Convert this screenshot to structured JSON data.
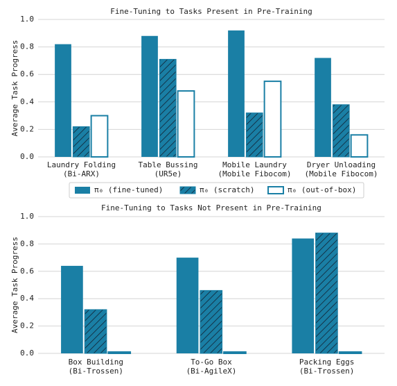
{
  "chart_data": [
    {
      "type": "bar",
      "title": "Fine-Tuning to Tasks Present in Pre-Training",
      "y_label": "Average Task Progress",
      "categories": [
        "Laundry Folding\n(Bi-ARX)",
        "Table Bussing\n(UR5e)",
        "Mobile Laundry\n(Mobile Fibocom)",
        "Dryer Unloading\n(Mobile Fibocom)"
      ],
      "series": [
        {
          "name": "π₀ (fine-tuned)",
          "color": "#1a7fa5",
          "pattern": "solid",
          "values": [
            0.82,
            0.88,
            0.92,
            0.72
          ]
        },
        {
          "name": "π₀ (scratch)",
          "color": "#1a7fa5",
          "pattern": "hatch",
          "values": [
            0.22,
            0.71,
            0.32,
            0.38
          ]
        },
        {
          "name": "π₀ (out-of-box)",
          "color": "#1a7fa5",
          "pattern": "outline",
          "values": [
            0.3,
            0.48,
            0.55,
            0.16
          ]
        }
      ],
      "ylim": [
        0,
        1
      ],
      "yticks": [
        {
          "value": 0,
          "label": "0.0"
        },
        0.2,
        0.4,
        0.6,
        0.8,
        {
          "value": 1,
          "label": "1.0"
        }
      ],
      "grid": true,
      "legend": "bottom"
    },
    {
      "type": "bar",
      "title": "Fine-Tuning to Tasks Not Present in Pre-Training",
      "y_label": "Average Task Progress",
      "categories": [
        "Box Building\n(Bi-Trossen)",
        "To-Go Box\n(Bi-AgileX)",
        "Packing Eggs\n(Bi-Trossen)"
      ],
      "series": [
        {
          "color": "#1a7fa5",
          "pattern": "solid",
          "values": [
            0.64,
            0.7,
            0.84
          ]
        },
        {
          "color": "#1a7fa5",
          "pattern": "hatch",
          "values": [
            0.32,
            0.46,
            0.88
          ]
        },
        {
          "color": "#1a7fa5",
          "pattern": "outline",
          "values": [
            0.01,
            0.01,
            0.01
          ]
        }
      ],
      "ylim": [
        0,
        1
      ],
      "yticks": [
        {
          "value": 0,
          "label": "0.0"
        },
        0.2,
        0.4,
        0.6,
        0.8,
        {
          "value": 1,
          "label": "1.0"
        }
      ],
      "grid": true
    }
  ]
}
